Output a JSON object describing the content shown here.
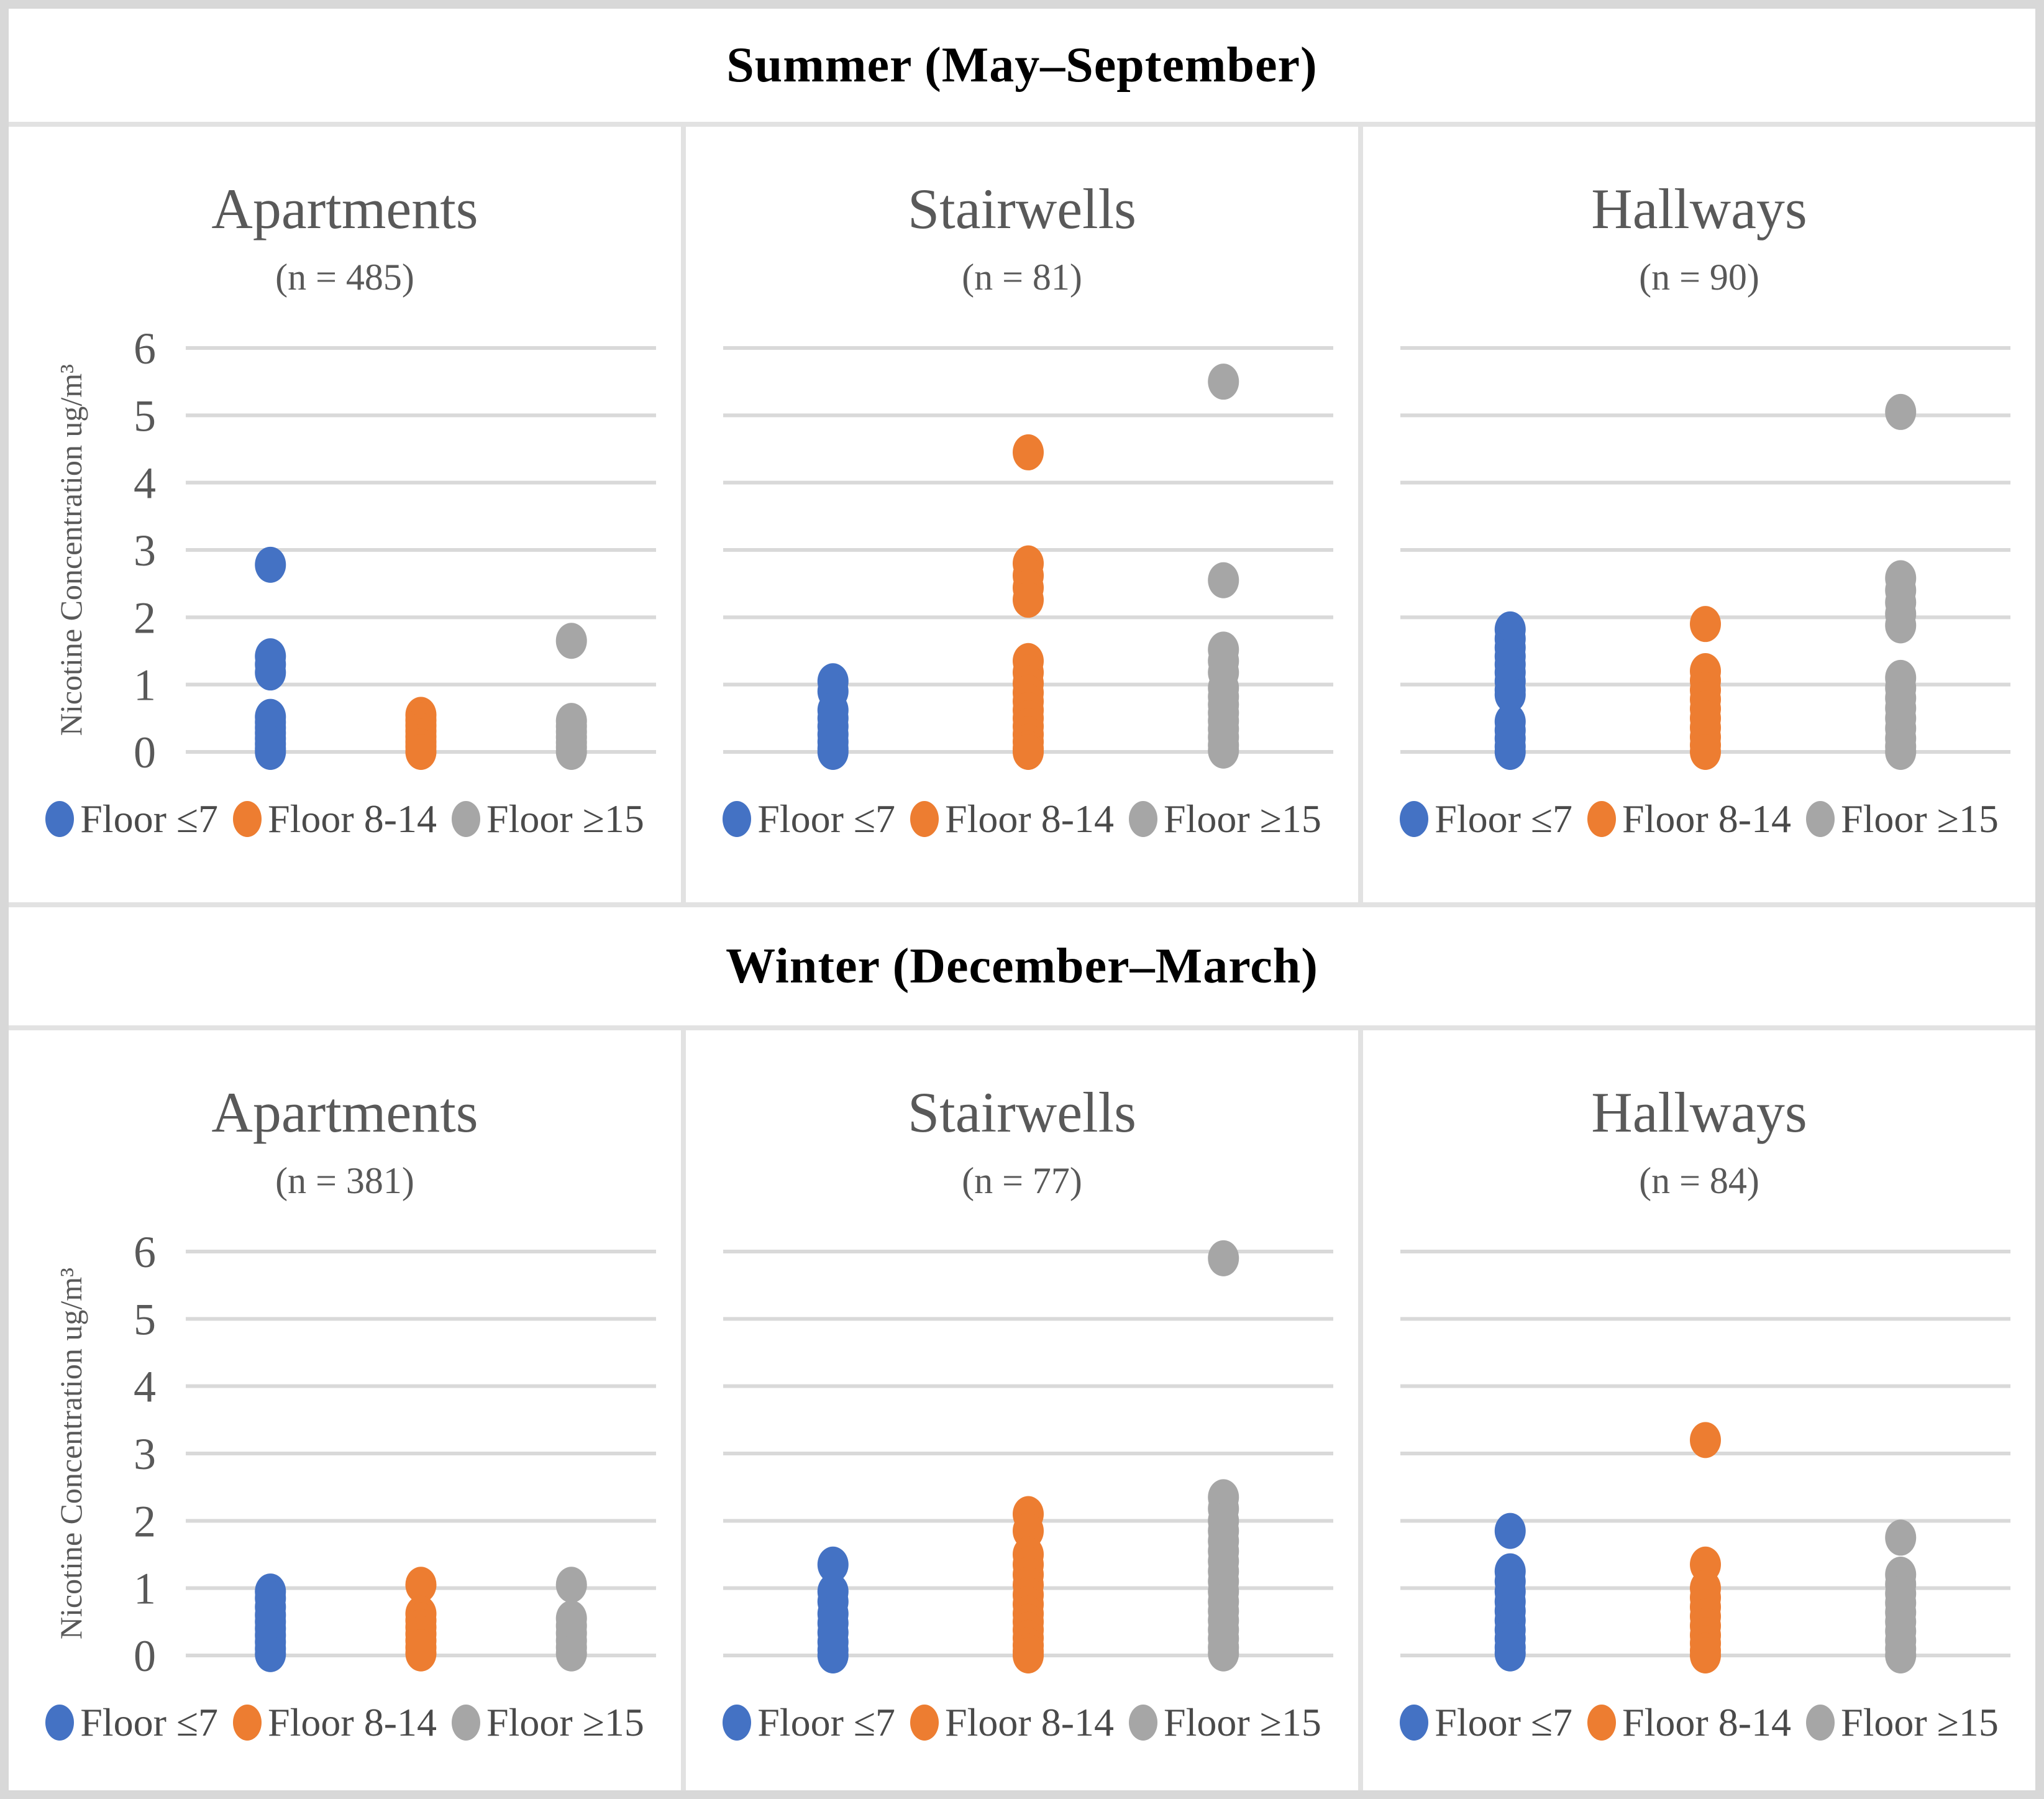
{
  "banners": {
    "summer": "Summer (May–September)",
    "winter": "Winter (December–March)"
  },
  "axis": {
    "y_title": "Nicotine Concentration ug/m³",
    "y_min": 0,
    "y_max": 6
  },
  "legend": {
    "items": [
      {
        "label": "Floor ≤7",
        "color": "#4472C4"
      },
      {
        "label": "Floor 8-14",
        "color": "#ED7D31"
      },
      {
        "label": "Floor ≥15",
        "color": "#A6A6A6"
      }
    ]
  },
  "colors": {
    "blue": "#4472C4",
    "orange": "#ED7D31",
    "gray": "#A6A6A6",
    "gridline": "#D9D9D9",
    "text_gray": "#595959"
  },
  "chart_data": [
    {
      "season": "Summer (May–September)",
      "location": "Apartments",
      "subtitle": "(n = 485)",
      "type": "scatter",
      "ylabel": "Nicotine Concentration ug/m³",
      "ylim": [
        0,
        6
      ],
      "yticks": [
        0,
        1,
        2,
        3,
        4,
        5,
        6
      ],
      "grid": true,
      "legend_position": "bottom",
      "series": [
        {
          "name": "Floor ≤7",
          "color": "#4472C4",
          "values": [
            2.78,
            1.42,
            1.3,
            1.18,
            0.52,
            0.44,
            0.36,
            0.28,
            0.2,
            0.12,
            0.05,
            0.0
          ]
        },
        {
          "name": "Floor 8-14",
          "color": "#ED7D31",
          "values": [
            0.55,
            0.47,
            0.39,
            0.31,
            0.23,
            0.15,
            0.08,
            0.0
          ]
        },
        {
          "name": "Floor ≥15",
          "color": "#A6A6A6",
          "values": [
            1.65,
            0.46,
            0.38,
            0.3,
            0.22,
            0.14,
            0.07,
            0.0
          ]
        }
      ]
    },
    {
      "season": "Summer (May–September)",
      "location": "Stairwells",
      "subtitle": "(n = 81)",
      "type": "scatter",
      "ylabel": "Nicotine Concentration ug/m³",
      "ylim": [
        0,
        6
      ],
      "yticks": [
        0,
        1,
        2,
        3,
        4,
        5,
        6
      ],
      "grid": true,
      "legend_position": "bottom",
      "series": [
        {
          "name": "Floor ≤7",
          "color": "#4472C4",
          "values": [
            1.05,
            0.9,
            0.62,
            0.5,
            0.38,
            0.26,
            0.15,
            0.05,
            0.0
          ]
        },
        {
          "name": "Floor 8-14",
          "color": "#ED7D31",
          "values": [
            4.45,
            2.8,
            2.62,
            2.44,
            2.26,
            1.35,
            1.18,
            1.02,
            0.88,
            0.75,
            0.62,
            0.5,
            0.38,
            0.26,
            0.15,
            0.05,
            0.0
          ]
        },
        {
          "name": "Floor ≥15",
          "color": "#A6A6A6",
          "values": [
            5.5,
            2.55,
            1.52,
            1.35,
            1.18,
            0.95,
            0.82,
            0.7,
            0.58,
            0.46,
            0.34,
            0.22,
            0.1,
            0.02
          ]
        }
      ]
    },
    {
      "season": "Summer (May–September)",
      "location": "Hallways",
      "subtitle": "(n = 90)",
      "type": "scatter",
      "ylabel": "Nicotine Concentration ug/m³",
      "ylim": [
        0,
        6
      ],
      "yticks": [
        0,
        1,
        2,
        3,
        4,
        5,
        6
      ],
      "grid": true,
      "legend_position": "bottom",
      "series": [
        {
          "name": "Floor ≤7",
          "color": "#4472C4",
          "values": [
            1.82,
            1.68,
            1.55,
            1.42,
            1.3,
            1.18,
            1.05,
            0.92,
            0.85,
            0.45,
            0.32,
            0.2,
            0.08,
            0.0
          ]
        },
        {
          "name": "Floor 8-14",
          "color": "#ED7D31",
          "values": [
            1.9,
            1.2,
            1.06,
            0.92,
            0.78,
            0.64,
            0.5,
            0.36,
            0.22,
            0.1,
            0.0
          ]
        },
        {
          "name": "Floor ≥15",
          "color": "#A6A6A6",
          "values": [
            5.05,
            2.58,
            2.4,
            2.22,
            2.05,
            1.88,
            1.1,
            0.95,
            0.8,
            0.65,
            0.5,
            0.35,
            0.2,
            0.08,
            0.0
          ]
        }
      ]
    },
    {
      "season": "Winter (December–March)",
      "location": "Apartments",
      "subtitle": "(n = 381)",
      "type": "scatter",
      "ylabel": "Nicotine Concentration ug/m³",
      "ylim": [
        0,
        6
      ],
      "yticks": [
        0,
        1,
        2,
        3,
        4,
        5,
        6
      ],
      "grid": true,
      "legend_position": "bottom",
      "series": [
        {
          "name": "Floor ≤7",
          "color": "#4472C4",
          "values": [
            0.95,
            0.85,
            0.72,
            0.6,
            0.5,
            0.4,
            0.3,
            0.2,
            0.1,
            0.02
          ]
        },
        {
          "name": "Floor 8-14",
          "color": "#ED7D31",
          "values": [
            1.05,
            0.62,
            0.52,
            0.42,
            0.32,
            0.22,
            0.12,
            0.03
          ]
        },
        {
          "name": "Floor ≥15",
          "color": "#A6A6A6",
          "values": [
            1.05,
            0.55,
            0.44,
            0.33,
            0.22,
            0.12,
            0.03
          ]
        }
      ]
    },
    {
      "season": "Winter (December–March)",
      "location": "Stairwells",
      "subtitle": "(n = 77)",
      "type": "scatter",
      "ylabel": "Nicotine Concentration ug/m³",
      "ylim": [
        0,
        6
      ],
      "yticks": [
        0,
        1,
        2,
        3,
        4,
        5,
        6
      ],
      "grid": true,
      "legend_position": "bottom",
      "series": [
        {
          "name": "Floor ≤7",
          "color": "#4472C4",
          "values": [
            1.35,
            0.95,
            0.8,
            0.62,
            0.48,
            0.34,
            0.2,
            0.08,
            0.0
          ]
        },
        {
          "name": "Floor 8-14",
          "color": "#ED7D31",
          "values": [
            2.1,
            1.85,
            1.5,
            1.35,
            1.2,
            1.05,
            0.9,
            0.76,
            0.62,
            0.5,
            0.38,
            0.26,
            0.15,
            0.06,
            0.0
          ]
        },
        {
          "name": "Floor ≥15",
          "color": "#A6A6A6",
          "values": [
            5.9,
            2.35,
            2.18,
            2.0,
            1.85,
            1.7,
            1.55,
            1.4,
            1.25,
            1.1,
            0.95,
            0.8,
            0.66,
            0.52,
            0.38,
            0.25,
            0.12,
            0.03
          ]
        }
      ]
    },
    {
      "season": "Winter (December–March)",
      "location": "Hallways",
      "subtitle": "(n = 84)",
      "type": "scatter",
      "ylabel": "Nicotine Concentration ug/m³",
      "ylim": [
        0,
        6
      ],
      "yticks": [
        0,
        1,
        2,
        3,
        4,
        5,
        6
      ],
      "grid": true,
      "legend_position": "bottom",
      "series": [
        {
          "name": "Floor ≤7",
          "color": "#4472C4",
          "values": [
            1.85,
            1.25,
            1.1,
            0.95,
            0.8,
            0.66,
            0.52,
            0.38,
            0.25,
            0.12,
            0.03
          ]
        },
        {
          "name": "Floor 8-14",
          "color": "#ED7D31",
          "values": [
            3.2,
            1.35,
            1.0,
            0.86,
            0.72,
            0.58,
            0.44,
            0.3,
            0.18,
            0.07,
            0.0
          ]
        },
        {
          "name": "Floor ≥15",
          "color": "#A6A6A6",
          "values": [
            1.75,
            1.2,
            1.06,
            0.92,
            0.78,
            0.64,
            0.5,
            0.36,
            0.22,
            0.1,
            0.0
          ]
        }
      ]
    }
  ]
}
